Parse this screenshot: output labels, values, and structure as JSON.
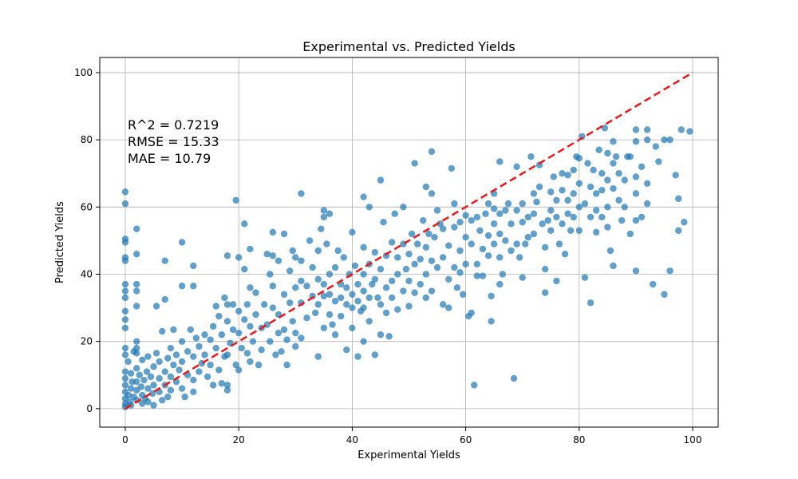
{
  "chart_data": {
    "type": "scatter",
    "title": "Experimental vs. Predicted Yields",
    "xlabel": "Experimental Yields",
    "ylabel": "Predicted Yields",
    "xlim": [
      -4.5,
      104.5
    ],
    "ylim": [
      -5.5,
      104.5
    ],
    "xticks": [
      0,
      20,
      40,
      60,
      80,
      100
    ],
    "yticks": [
      0,
      20,
      40,
      60,
      80,
      100
    ],
    "grid": true,
    "point_color": "#1f77b4",
    "reference_line": {
      "x": [
        0,
        100
      ],
      "y": [
        0,
        100
      ],
      "color": "#e41a1c",
      "style": "dashed"
    },
    "annotations": [
      "R^2 = 0.7219",
      "RMSE = 15.33",
      "MAE = 10.79"
    ],
    "points": [
      [
        0,
        64.5
      ],
      [
        0,
        61
      ],
      [
        0,
        50.5
      ],
      [
        0,
        49.5
      ],
      [
        0,
        45
      ],
      [
        0,
        44
      ],
      [
        0,
        37
      ],
      [
        0,
        35
      ],
      [
        0,
        33
      ],
      [
        0,
        29
      ],
      [
        0,
        26.5
      ],
      [
        0,
        24
      ],
      [
        0,
        18
      ],
      [
        0,
        16
      ],
      [
        0,
        11
      ],
      [
        0,
        9
      ],
      [
        0,
        7
      ],
      [
        0,
        5
      ],
      [
        0,
        3
      ],
      [
        0,
        1.5
      ],
      [
        0,
        0.5
      ],
      [
        0.5,
        14
      ],
      [
        0.6,
        4
      ],
      [
        0.8,
        2
      ],
      [
        1,
        10.5
      ],
      [
        1,
        6
      ],
      [
        1,
        1
      ],
      [
        1.2,
        8
      ],
      [
        1.5,
        3.5
      ],
      [
        1.5,
        17
      ],
      [
        2,
        53.5
      ],
      [
        2,
        46
      ],
      [
        2,
        37
      ],
      [
        2,
        35
      ],
      [
        2,
        30.5
      ],
      [
        2,
        20
      ],
      [
        2,
        18
      ],
      [
        2,
        16.5
      ],
      [
        2,
        12
      ],
      [
        2,
        8
      ],
      [
        2,
        5.5
      ],
      [
        2,
        2.5
      ],
      [
        2.5,
        10
      ],
      [
        2.8,
        6.5
      ],
      [
        3,
        4
      ],
      [
        3,
        1.5
      ],
      [
        3,
        14.5
      ],
      [
        3.3,
        8.5
      ],
      [
        3.5,
        3
      ],
      [
        3.8,
        11
      ],
      [
        4,
        6
      ],
      [
        4,
        2
      ],
      [
        4,
        15.5
      ],
      [
        4.5,
        9.5
      ],
      [
        4.8,
        4.5
      ],
      [
        5,
        12.5
      ],
      [
        5,
        7
      ],
      [
        5,
        1
      ],
      [
        5.5,
        30.5
      ],
      [
        5.5,
        16.5
      ],
      [
        6,
        5
      ],
      [
        6,
        9
      ],
      [
        6,
        14
      ],
      [
        6.5,
        2.5
      ],
      [
        6.5,
        23
      ],
      [
        7,
        44
      ],
      [
        7,
        32.5
      ],
      [
        7,
        11
      ],
      [
        7,
        7
      ],
      [
        7.5,
        15
      ],
      [
        7.5,
        3.5
      ],
      [
        8,
        18
      ],
      [
        8,
        9.5
      ],
      [
        8,
        5.5
      ],
      [
        8.5,
        23.5
      ],
      [
        8.5,
        13
      ],
      [
        9,
        8
      ],
      [
        9,
        16
      ],
      [
        9.5,
        11.5
      ],
      [
        10,
        49.5
      ],
      [
        10,
        36.5
      ],
      [
        10,
        20
      ],
      [
        10,
        14
      ],
      [
        10,
        6
      ],
      [
        10.5,
        3.5
      ],
      [
        11,
        17
      ],
      [
        11,
        10
      ],
      [
        11.5,
        23.5
      ],
      [
        12,
        42.5
      ],
      [
        12,
        36.5
      ],
      [
        12,
        15.5
      ],
      [
        12,
        8.5
      ],
      [
        12,
        5
      ],
      [
        12.5,
        21
      ],
      [
        13,
        18.5
      ],
      [
        13,
        11
      ],
      [
        13.5,
        13.5
      ],
      [
        14,
        22
      ],
      [
        14,
        16
      ],
      [
        14.5,
        9.5
      ],
      [
        15,
        20.5
      ],
      [
        15,
        13
      ],
      [
        15.5,
        24.5
      ],
      [
        15.5,
        7
      ],
      [
        16,
        30.5
      ],
      [
        16,
        18
      ],
      [
        16.5,
        27.5
      ],
      [
        16.5,
        11.5
      ],
      [
        17,
        7.5
      ],
      [
        17,
        22
      ],
      [
        17.5,
        33
      ],
      [
        17.5,
        15.5
      ],
      [
        18,
        45.5
      ],
      [
        18,
        31
      ],
      [
        18,
        26
      ],
      [
        18,
        16
      ],
      [
        18,
        7
      ],
      [
        18,
        5.5
      ],
      [
        18.5,
        19.5
      ],
      [
        19,
        31
      ],
      [
        19,
        23.5
      ],
      [
        19.5,
        62
      ],
      [
        19.5,
        13
      ],
      [
        20,
        45
      ],
      [
        20,
        29
      ],
      [
        20,
        22.5
      ],
      [
        20,
        11.5
      ],
      [
        20.5,
        18
      ],
      [
        21,
        55
      ],
      [
        21,
        41.5
      ],
      [
        21,
        26.5
      ],
      [
        21.5,
        31
      ],
      [
        21.5,
        16.5
      ],
      [
        22,
        47.5
      ],
      [
        22,
        36
      ],
      [
        22,
        24.5
      ],
      [
        22,
        14
      ],
      [
        22.5,
        20
      ],
      [
        23,
        34.5
      ],
      [
        23,
        28
      ],
      [
        23.5,
        13
      ],
      [
        24,
        24
      ],
      [
        24,
        17.5
      ],
      [
        24.5,
        31
      ],
      [
        25,
        46
      ],
      [
        25,
        25
      ],
      [
        25.5,
        40
      ],
      [
        25.5,
        20
      ],
      [
        26,
        52.5
      ],
      [
        26,
        45.5
      ],
      [
        26,
        36.5
      ],
      [
        26,
        30
      ],
      [
        26.5,
        16
      ],
      [
        27,
        44
      ],
      [
        27,
        28
      ],
      [
        27,
        22.5
      ],
      [
        27.5,
        17
      ],
      [
        28,
        52
      ],
      [
        28,
        34
      ],
      [
        28,
        23.5
      ],
      [
        28.5,
        20.5
      ],
      [
        28.5,
        13
      ],
      [
        29,
        41
      ],
      [
        29,
        31.5
      ],
      [
        29.5,
        47
      ],
      [
        29.5,
        26
      ],
      [
        30,
        45
      ],
      [
        30,
        36
      ],
      [
        30,
        22.5
      ],
      [
        30,
        18.5
      ],
      [
        31,
        64
      ],
      [
        31,
        44
      ],
      [
        31,
        38
      ],
      [
        31,
        31.5
      ],
      [
        31,
        21
      ],
      [
        32,
        36.5
      ],
      [
        32,
        27
      ],
      [
        32.5,
        50
      ],
      [
        33,
        42
      ],
      [
        33,
        33.5
      ],
      [
        33.5,
        28.5
      ],
      [
        34,
        47
      ],
      [
        34,
        38.5
      ],
      [
        34,
        31
      ],
      [
        34,
        15.5
      ],
      [
        34.5,
        53.5
      ],
      [
        35,
        59
      ],
      [
        35,
        57
      ],
      [
        35,
        37
      ],
      [
        35,
        33.5
      ],
      [
        35,
        24
      ],
      [
        35.5,
        49
      ],
      [
        36,
        58
      ],
      [
        36,
        40
      ],
      [
        36,
        34
      ],
      [
        36,
        28
      ],
      [
        36.5,
        25
      ],
      [
        37,
        42
      ],
      [
        37,
        32
      ],
      [
        37,
        22
      ],
      [
        37.5,
        47
      ],
      [
        38,
        37
      ],
      [
        38,
        33
      ],
      [
        38,
        27.5
      ],
      [
        38.5,
        45
      ],
      [
        39,
        31
      ],
      [
        39,
        36
      ],
      [
        39,
        17.5
      ],
      [
        39.5,
        40
      ],
      [
        40,
        52.5
      ],
      [
        40,
        34
      ],
      [
        40,
        30
      ],
      [
        40,
        24
      ],
      [
        40.5,
        42.5
      ],
      [
        41,
        37
      ],
      [
        41,
        32
      ],
      [
        41,
        15.5
      ],
      [
        41.5,
        29
      ],
      [
        42,
        63
      ],
      [
        42,
        48
      ],
      [
        42,
        40
      ],
      [
        42,
        35
      ],
      [
        42,
        30
      ],
      [
        42,
        20
      ],
      [
        43,
        60
      ],
      [
        43,
        43
      ],
      [
        43,
        33
      ],
      [
        43,
        26
      ],
      [
        43.5,
        37
      ],
      [
        44,
        46.5
      ],
      [
        44,
        38.5
      ],
      [
        44,
        16
      ],
      [
        44.5,
        33
      ],
      [
        45,
        68
      ],
      [
        45,
        41.5
      ],
      [
        45,
        31
      ],
      [
        45,
        22
      ],
      [
        45.5,
        55.5
      ],
      [
        46,
        45.5
      ],
      [
        46,
        36
      ],
      [
        46,
        28.5
      ],
      [
        46.5,
        21.5
      ],
      [
        47,
        49.5
      ],
      [
        47,
        38
      ],
      [
        47,
        33
      ],
      [
        47.5,
        58
      ],
      [
        48,
        45
      ],
      [
        48,
        40
      ],
      [
        48,
        29.5
      ],
      [
        49,
        60
      ],
      [
        49,
        49
      ],
      [
        49,
        35
      ],
      [
        49.5,
        41.5
      ],
      [
        50,
        46
      ],
      [
        50,
        38
      ],
      [
        50,
        30.5
      ],
      [
        50.5,
        52
      ],
      [
        51,
        73
      ],
      [
        51,
        43
      ],
      [
        51,
        34.5
      ],
      [
        51.5,
        49
      ],
      [
        52,
        44.5
      ],
      [
        52,
        37
      ],
      [
        52.5,
        56
      ],
      [
        53,
        66
      ],
      [
        53,
        48
      ],
      [
        53,
        40
      ],
      [
        53,
        33
      ],
      [
        53.5,
        52
      ],
      [
        54,
        76.5
      ],
      [
        54,
        64
      ],
      [
        54,
        44
      ],
      [
        54,
        35
      ],
      [
        54.5,
        51
      ],
      [
        55,
        59
      ],
      [
        55,
        42
      ],
      [
        55.5,
        55
      ],
      [
        56,
        53.5
      ],
      [
        56,
        45
      ],
      [
        56,
        31
      ],
      [
        57,
        48.5
      ],
      [
        57,
        38.5
      ],
      [
        57,
        30
      ],
      [
        57.5,
        71.5
      ],
      [
        58,
        61
      ],
      [
        58,
        54
      ],
      [
        58,
        42
      ],
      [
        58.5,
        36
      ],
      [
        59,
        55.5
      ],
      [
        59,
        47
      ],
      [
        59,
        40.5
      ],
      [
        59.5,
        34
      ],
      [
        60,
        57.5
      ],
      [
        60,
        51
      ],
      [
        60,
        43
      ],
      [
        60.5,
        27.5
      ],
      [
        61,
        56
      ],
      [
        61,
        49
      ],
      [
        61,
        28.5
      ],
      [
        61.5,
        7
      ],
      [
        62,
        57
      ],
      [
        62,
        43
      ],
      [
        62,
        39.5
      ],
      [
        62.5,
        53
      ],
      [
        63,
        47.5
      ],
      [
        63,
        39.5
      ],
      [
        63.5,
        58
      ],
      [
        64,
        61
      ],
      [
        64,
        51.5
      ],
      [
        64,
        45.5
      ],
      [
        64.5,
        33.5
      ],
      [
        64.5,
        26
      ],
      [
        65,
        64
      ],
      [
        65,
        59.5
      ],
      [
        65,
        55
      ],
      [
        65,
        49
      ],
      [
        66,
        73.5
      ],
      [
        66,
        58
      ],
      [
        66,
        52
      ],
      [
        66,
        45
      ],
      [
        66,
        37
      ],
      [
        66.5,
        40
      ],
      [
        67,
        59
      ],
      [
        67,
        50
      ],
      [
        67.5,
        61
      ],
      [
        68,
        55
      ],
      [
        68,
        47
      ],
      [
        68.5,
        9
      ],
      [
        69,
        72
      ],
      [
        69,
        59
      ],
      [
        69,
        49
      ],
      [
        69.5,
        45
      ],
      [
        70,
        61
      ],
      [
        70,
        55.5
      ],
      [
        70,
        39
      ],
      [
        70.5,
        49
      ],
      [
        71,
        57
      ],
      [
        71,
        51
      ],
      [
        71.5,
        75
      ],
      [
        72,
        64
      ],
      [
        72,
        58
      ],
      [
        72,
        52
      ],
      [
        72.5,
        61.5
      ],
      [
        73,
        72.5
      ],
      [
        73,
        66
      ],
      [
        73.5,
        55
      ],
      [
        74,
        48
      ],
      [
        74,
        34.5
      ],
      [
        74,
        41.5
      ],
      [
        74.5,
        56
      ],
      [
        75,
        64.5
      ],
      [
        75,
        59
      ],
      [
        75,
        53
      ],
      [
        75.5,
        69
      ],
      [
        76,
        62
      ],
      [
        76,
        57
      ],
      [
        76,
        38
      ],
      [
        76.5,
        49
      ],
      [
        77,
        70
      ],
      [
        77,
        65
      ],
      [
        77,
        55
      ],
      [
        77.5,
        46
      ],
      [
        78,
        69.5
      ],
      [
        78,
        62
      ],
      [
        78,
        58
      ],
      [
        78.5,
        53
      ],
      [
        79,
        71
      ],
      [
        79,
        64
      ],
      [
        79,
        57
      ],
      [
        79.5,
        75
      ],
      [
        80,
        74.5
      ],
      [
        80,
        67
      ],
      [
        80,
        60
      ],
      [
        80,
        53
      ],
      [
        80.5,
        81
      ],
      [
        81,
        61
      ],
      [
        81,
        39
      ],
      [
        81.5,
        73
      ],
      [
        82,
        66
      ],
      [
        82,
        57
      ],
      [
        82,
        31.5
      ],
      [
        82.5,
        71
      ],
      [
        83,
        64
      ],
      [
        83,
        59
      ],
      [
        83,
        52.5
      ],
      [
        83.5,
        77
      ],
      [
        84,
        70
      ],
      [
        84,
        65
      ],
      [
        84,
        57
      ],
      [
        84.5,
        83.5
      ],
      [
        85,
        76
      ],
      [
        85,
        68
      ],
      [
        85,
        60
      ],
      [
        85,
        54
      ],
      [
        85.5,
        47
      ],
      [
        86,
        79.5
      ],
      [
        86,
        73
      ],
      [
        86,
        65.5
      ],
      [
        86,
        42.5
      ],
      [
        86.5,
        75
      ],
      [
        87,
        70
      ],
      [
        87,
        62
      ],
      [
        87.5,
        56
      ],
      [
        88,
        68
      ],
      [
        88,
        60
      ],
      [
        88.5,
        75
      ],
      [
        89,
        52
      ],
      [
        89,
        75
      ],
      [
        90,
        83
      ],
      [
        90,
        79.5
      ],
      [
        90,
        69
      ],
      [
        90,
        64
      ],
      [
        90,
        56
      ],
      [
        90,
        41
      ],
      [
        91,
        72
      ],
      [
        91,
        57
      ],
      [
        92,
        83
      ],
      [
        92,
        80
      ],
      [
        92,
        67
      ],
      [
        92,
        61
      ],
      [
        93,
        37
      ],
      [
        93.5,
        78
      ],
      [
        94,
        73.5
      ],
      [
        95,
        80
      ],
      [
        95,
        34
      ],
      [
        96,
        41
      ],
      [
        96,
        80
      ],
      [
        97,
        69.5
      ],
      [
        97.5,
        62.5
      ],
      [
        97.5,
        53
      ],
      [
        98,
        83
      ],
      [
        98.5,
        55.5
      ],
      [
        99.5,
        82.5
      ]
    ]
  }
}
